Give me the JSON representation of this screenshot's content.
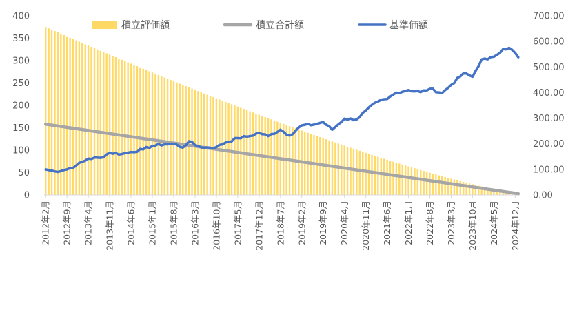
{
  "chart_data": {
    "type": "bar+line",
    "legend": {
      "placement": "top",
      "entries": [
        {
          "label": "積立評価額",
          "marker": "bar",
          "color": "#FFD966"
        },
        {
          "label": "積立合計額",
          "marker": "line",
          "color": "#A6A6A6"
        },
        {
          "label": "基準価額",
          "marker": "line",
          "color": "#4472C4"
        }
      ]
    },
    "left_axis": {
      "ylim": [
        0,
        400
      ],
      "ticks": [
        "0",
        "50",
        "100",
        "150",
        "200",
        "250",
        "300",
        "350",
        "400"
      ]
    },
    "right_axis": {
      "ylim": [
        0,
        700
      ],
      "ticks": [
        "0.00",
        "100.00",
        "200.00",
        "300.00",
        "400.00",
        "500.00",
        "600.00",
        "700.00"
      ]
    },
    "x_tick_labels": [
      "2012年2月",
      "2012年9月",
      "2013年4月",
      "2013年11月",
      "2014年6月",
      "2015年1月",
      "2015年8月",
      "2016年3月",
      "2016年10月",
      "2017年5月",
      "2017年12月",
      "2018年7月",
      "2019年2月",
      "2019年9月",
      "2020年4月",
      "2020年11月",
      "2021年6月",
      "2022年1月",
      "2022年8月",
      "2023年3月",
      "2023年10月",
      "2024年5月",
      "2024年12月"
    ],
    "months": {
      "start": "2012年2月",
      "end": "2025年1月",
      "count": 156
    },
    "series": [
      {
        "name": "積立評価額",
        "type": "bar",
        "axis": "left",
        "color": "#FFD966",
        "start": 375,
        "end": 4,
        "shape": "decreasing-curve"
      },
      {
        "name": "積立合計額",
        "type": "line",
        "axis": "left",
        "color": "#A6A6A6",
        "start": 158,
        "end": 3,
        "shape": "linear"
      },
      {
        "name": "基準価額",
        "type": "line",
        "axis": "right",
        "color": "#4472C4",
        "points": [
          [
            "2012年2月",
            100
          ],
          [
            "2012年5月",
            92
          ],
          [
            "2012年9月",
            100
          ],
          [
            "2012年12月",
            115
          ],
          [
            "2013年4月",
            142
          ],
          [
            "2013年8月",
            145
          ],
          [
            "2013年11月",
            165
          ],
          [
            "2014年3月",
            160
          ],
          [
            "2014年6月",
            168
          ],
          [
            "2014年10月",
            178
          ],
          [
            "2015年1月",
            192
          ],
          [
            "2015年5月",
            198
          ],
          [
            "2015年8月",
            200
          ],
          [
            "2015年11月",
            185
          ],
          [
            "2016年1月",
            210
          ],
          [
            "2016年3月",
            195
          ],
          [
            "2016年6月",
            185
          ],
          [
            "2016年10月",
            187
          ],
          [
            "2017年1月",
            205
          ],
          [
            "2017年5月",
            222
          ],
          [
            "2017年9月",
            230
          ],
          [
            "2017年12月",
            243
          ],
          [
            "2018年3月",
            230
          ],
          [
            "2018年7月",
            255
          ],
          [
            "2018年10月",
            232
          ],
          [
            "2019年2月",
            272
          ],
          [
            "2019年6月",
            275
          ],
          [
            "2019年9月",
            285
          ],
          [
            "2019年12月",
            255
          ],
          [
            "2020年4月",
            298
          ],
          [
            "2020年8月",
            295
          ],
          [
            "2020年11月",
            330
          ],
          [
            "2021年3月",
            365
          ],
          [
            "2021年6月",
            375
          ],
          [
            "2021年9月",
            400
          ],
          [
            "2022年1月",
            410
          ],
          [
            "2022年5月",
            402
          ],
          [
            "2022年8月",
            415
          ],
          [
            "2022年12月",
            398
          ],
          [
            "2023年3月",
            430
          ],
          [
            "2023年7月",
            475
          ],
          [
            "2023年10月",
            462
          ],
          [
            "2024年1月",
            530
          ],
          [
            "2024年3月",
            530
          ],
          [
            "2024年5月",
            540
          ],
          [
            "2024年8月",
            570
          ],
          [
            "2024年10月",
            575
          ],
          [
            "2024年12月",
            555
          ],
          [
            "2025年1月",
            538
          ]
        ]
      }
    ]
  }
}
